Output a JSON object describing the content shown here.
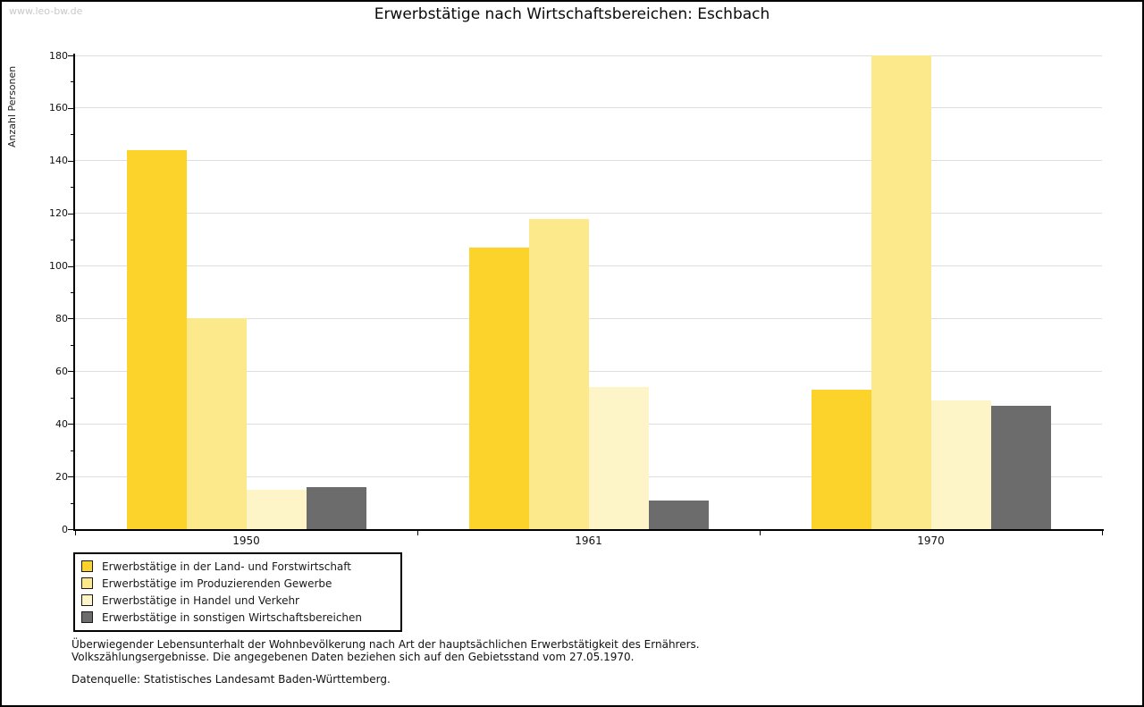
{
  "watermark": "www.leo-bw.de",
  "title": "Erwerbstätige nach Wirtschaftsbereichen: Eschbach",
  "chart_data": {
    "type": "bar",
    "title": "Erwerbstätige nach Wirtschaftsbereichen: Eschbach",
    "xlabel": "",
    "ylabel": "Anzahl Personen",
    "ylim": [
      0,
      180
    ],
    "ytick_step": 20,
    "ytick_minor_step": 10,
    "grid": true,
    "legend_position": "bottom-left",
    "categories": [
      "1950",
      "1961",
      "1970"
    ],
    "series": [
      {
        "name": "Erwerbstätige in der Land- und Forstwirtschaft",
        "color": "#FCD32B",
        "values": [
          144,
          107,
          53
        ]
      },
      {
        "name": "Erwerbstätige im Produzierenden Gewerbe",
        "color": "#FCE98C",
        "values": [
          80,
          118,
          180
        ]
      },
      {
        "name": "Erwerbstätige in Handel und Verkehr",
        "color": "#FDF4C7",
        "values": [
          15,
          54,
          49
        ]
      },
      {
        "name": "Erwerbstätige in sonstigen Wirtschaftsbereichen",
        "color": "#6C6C6C",
        "values": [
          16,
          11,
          47
        ]
      }
    ]
  },
  "footer": {
    "note_line1": "Überwiegender Lebensunterhalt der Wohnbevölkerung nach Art der hauptsächlichen Erwerbstätigkeit des Ernährers.",
    "note_line2": "Volkszählungsergebnisse. Die angegebenen Daten beziehen sich auf den Gebietsstand vom 27.05.1970.",
    "source": "Datenquelle: Statistisches Landesamt Baden-Württemberg."
  }
}
